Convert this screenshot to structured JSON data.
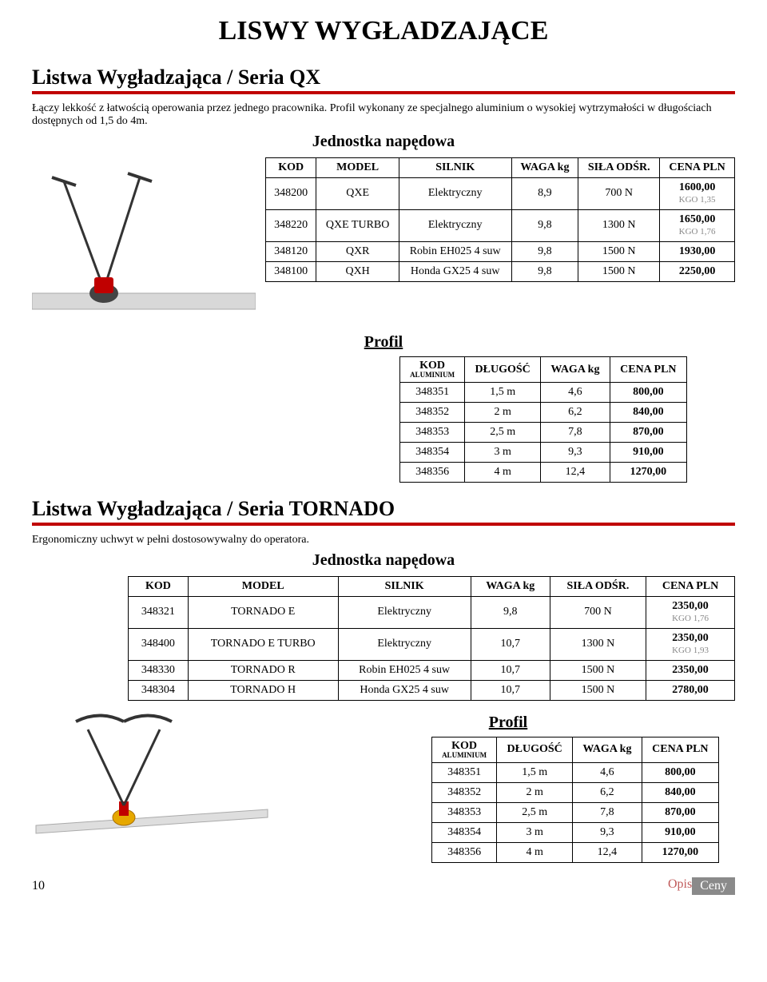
{
  "page": {
    "title": "LISWY WYGŁADZAJĄCE",
    "footer_page": "10",
    "footer_opis": "Opis",
    "footer_ceny": "Ceny"
  },
  "qx": {
    "heading": "Listwa Wygładzająca  /  Seria QX",
    "desc": "Łączy lekkość z łatwością operowania przez jednego pracownika. Profil wykonany ze specjalnego aluminium o wysokiej wytrzymałości w długościach dostępnych od 1,5 do 4m.",
    "jed_title": "Jednostka napędowa",
    "jed_headers": {
      "kod": "KOD",
      "model": "MODEL",
      "silnik": "SILNIK",
      "waga": "WAGA kg",
      "sila": "SIŁA ODŚR.",
      "cena": "CENA PLN"
    },
    "jed_rows": [
      {
        "kod": "348200",
        "model": "QXE",
        "silnik": "Elektryczny",
        "waga": "8,9",
        "sila": "700 N",
        "cena": "1600,00",
        "kgo": "KGO 1,35"
      },
      {
        "kod": "348220",
        "model": "QXE TURBO",
        "silnik": "Elektryczny",
        "waga": "9,8",
        "sila": "1300 N",
        "cena": "1650,00",
        "kgo": "KGO 1,76"
      },
      {
        "kod": "348120",
        "model": "QXR",
        "silnik": "Robin EH025 4 suw",
        "waga": "9,8",
        "sila": "1500 N",
        "cena": "1930,00",
        "kgo": ""
      },
      {
        "kod": "348100",
        "model": "QXH",
        "silnik": "Honda GX25 4 suw",
        "waga": "9,8",
        "sila": "1500 N",
        "cena": "2250,00",
        "kgo": ""
      }
    ],
    "profil_title": "Profil",
    "profil_headers": {
      "kod": "KOD",
      "kod_sub": "ALUMINIUM",
      "dlug": "DŁUGOŚĆ",
      "waga": "WAGA kg",
      "cena": "CENA PLN"
    },
    "profil_rows": [
      {
        "kod": "348351",
        "dlug": "1,5 m",
        "waga": "4,6",
        "cena": "800,00"
      },
      {
        "kod": "348352",
        "dlug": "2 m",
        "waga": "6,2",
        "cena": "840,00"
      },
      {
        "kod": "348353",
        "dlug": "2,5 m",
        "waga": "7,8",
        "cena": "870,00"
      },
      {
        "kod": "348354",
        "dlug": "3 m",
        "waga": "9,3",
        "cena": "910,00"
      },
      {
        "kod": "348356",
        "dlug": "4 m",
        "waga": "12,4",
        "cena": "1270,00"
      }
    ]
  },
  "tornado": {
    "heading": "Listwa Wygładzająca  /  Seria TORNADO",
    "desc": "Ergonomiczny uchwyt w pełni dostosowywalny do operatora.",
    "jed_title": "Jednostka napędowa",
    "jed_headers": {
      "kod": "KOD",
      "model": "MODEL",
      "silnik": "SILNIK",
      "waga": "WAGA kg",
      "sila": "SIŁA ODŚR.",
      "cena": "CENA PLN"
    },
    "jed_rows": [
      {
        "kod": "348321",
        "model": "TORNADO E",
        "silnik": "Elektryczny",
        "waga": "9,8",
        "sila": "700 N",
        "cena": "2350,00",
        "kgo": "KGO 1,76"
      },
      {
        "kod": "348400",
        "model": "TORNADO E TURBO",
        "silnik": "Elektryczny",
        "waga": "10,7",
        "sila": "1300 N",
        "cena": "2350,00",
        "kgo": "KGO 1,93"
      },
      {
        "kod": "348330",
        "model": "TORNADO R",
        "silnik": "Robin EH025 4 suw",
        "waga": "10,7",
        "sila": "1500 N",
        "cena": "2350,00",
        "kgo": ""
      },
      {
        "kod": "348304",
        "model": "TORNADO H",
        "silnik": "Honda GX25 4 suw",
        "waga": "10,7",
        "sila": "1500 N",
        "cena": "2780,00",
        "kgo": ""
      }
    ],
    "profil_title": "Profil",
    "profil_headers": {
      "kod": "KOD",
      "kod_sub": "ALUMINIUM",
      "dlug": "DŁUGOŚĆ",
      "waga": "WAGA kg",
      "cena": "CENA PLN"
    },
    "profil_rows": [
      {
        "kod": "348351",
        "dlug": "1,5 m",
        "waga": "4,6",
        "cena": "800,00"
      },
      {
        "kod": "348352",
        "dlug": "2 m",
        "waga": "6,2",
        "cena": "840,00"
      },
      {
        "kod": "348353",
        "dlug": "2,5 m",
        "waga": "7,8",
        "cena": "870,00"
      },
      {
        "kod": "348354",
        "dlug": "3 m",
        "waga": "9,3",
        "cena": "910,00"
      },
      {
        "kod": "348356",
        "dlug": "4 m",
        "waga": "12,4",
        "cena": "1270,00"
      }
    ]
  },
  "colors": {
    "red_rule": "#c00000",
    "kgo_text": "#888888",
    "footer_opis": "#c05a5a",
    "footer_ceny_bg": "#8a8a8a"
  }
}
